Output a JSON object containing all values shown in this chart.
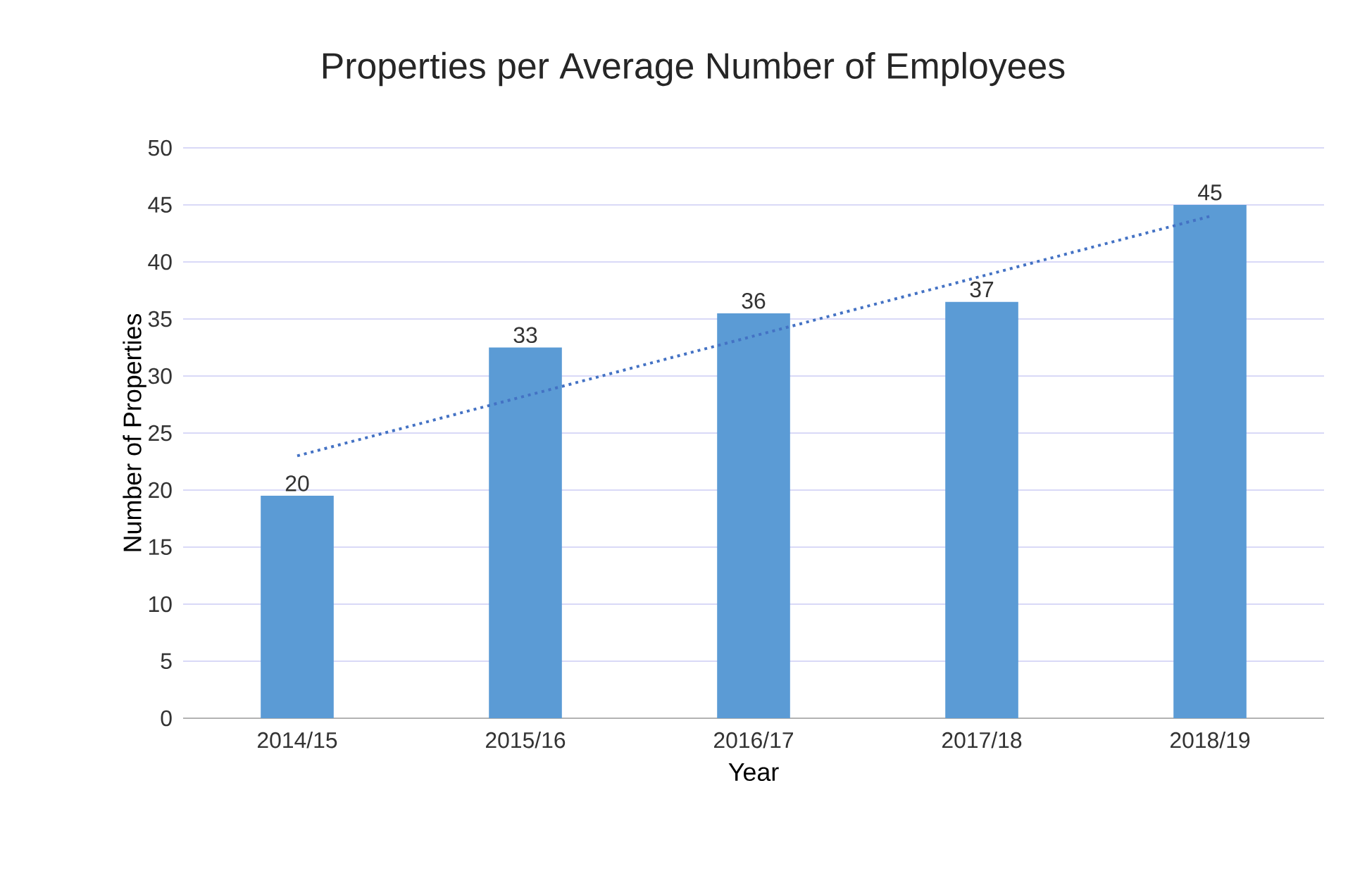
{
  "chart_data": {
    "type": "bar",
    "title": "Properties per Average Number of Employees",
    "xlabel": "Year",
    "ylabel": "Number of Properties",
    "categories": [
      "2014/15",
      "2015/16",
      "2016/17",
      "2017/18",
      "2018/19"
    ],
    "series": [
      {
        "color": "#5b9bd5",
        "values": [
          19.5,
          32.5,
          35.5,
          36.5,
          45
        ],
        "value_labels": [
          "20",
          "33",
          "36",
          "37",
          "45"
        ]
      },
      {
        "type": "line",
        "color": "#4472c4",
        "line_style": "dotted",
        "x": [
          "2014/15",
          "2018/19"
        ],
        "values": [
          23,
          44
        ]
      }
    ],
    "ylim": [
      0,
      50
    ],
    "yticks": [
      0,
      5,
      10,
      15,
      20,
      25,
      30,
      35,
      40,
      45,
      50
    ],
    "grid": "y"
  }
}
